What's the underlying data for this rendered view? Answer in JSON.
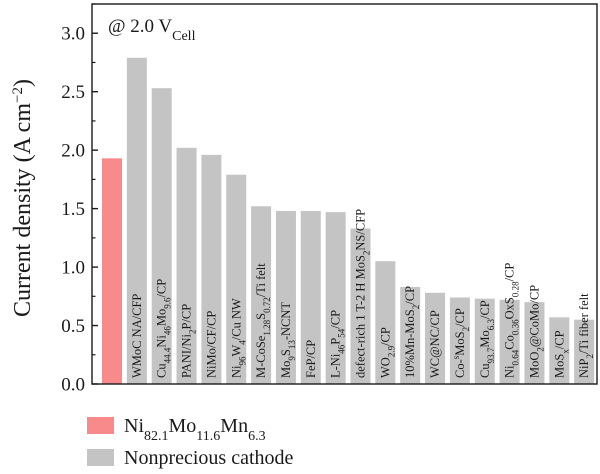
{
  "chart_data": {
    "type": "bar",
    "ylabel": "Current density (A cm",
    "ylabel_sup": "−2",
    "ylabel_close": ")",
    "ylim": [
      0,
      3.25
    ],
    "yticks": [
      "0.0",
      "0.5",
      "1.0",
      "1.5",
      "2.0",
      "2.5",
      "3.0"
    ],
    "grid": false,
    "annotation": {
      "text": "@ 2.0 V",
      "sub": "Cell"
    },
    "legend_position": "bottom-left",
    "colors": {
      "highlight": "#f98a8c",
      "nonprecious": "#c4c4c4",
      "axis": "#1a1a1a"
    },
    "legend": [
      {
        "series": "highlight",
        "parts": [
          [
            "Ni",
            ""
          ],
          [
            "82.1",
            "sub"
          ],
          [
            "Mo",
            ""
          ],
          [
            "11.6",
            "sub"
          ],
          [
            "Mn",
            ""
          ],
          [
            "6.3",
            "sub"
          ]
        ]
      },
      {
        "series": "nonprecious",
        "parts": [
          [
            "Nonprecious cathode",
            ""
          ]
        ]
      }
    ],
    "bars": [
      {
        "value": 1.93,
        "series": "highlight",
        "label": []
      },
      {
        "value": 2.79,
        "series": "nonprecious",
        "label": [
          [
            "WMoC NA/CFP",
            ""
          ]
        ]
      },
      {
        "value": 2.53,
        "series": "nonprecious",
        "label": [
          [
            "Cu",
            ""
          ],
          [
            "44.4",
            "sub"
          ],
          [
            "Ni",
            ""
          ],
          [
            "46",
            "sub"
          ],
          [
            "Mo",
            ""
          ],
          [
            "9.6",
            "sub"
          ],
          [
            "/CP",
            ""
          ]
        ]
      },
      {
        "value": 2.02,
        "series": "nonprecious",
        "label": [
          [
            "PANI/Ni",
            ""
          ],
          [
            "2",
            "sub"
          ],
          [
            "P/CP",
            ""
          ]
        ]
      },
      {
        "value": 1.96,
        "series": "nonprecious",
        "label": [
          [
            "NiMo/CF/CP",
            ""
          ]
        ]
      },
      {
        "value": 1.79,
        "series": "nonprecious",
        "label": [
          [
            "Ni",
            ""
          ],
          [
            "96",
            "sub"
          ],
          [
            "W",
            ""
          ],
          [
            "4",
            "sub"
          ],
          [
            "/Cu NW",
            ""
          ]
        ]
      },
      {
        "value": 1.52,
        "series": "nonprecious",
        "label": [
          [
            "M-CoSe",
            ""
          ],
          [
            "1.28",
            "sub"
          ],
          [
            "S",
            ""
          ],
          [
            "0.72",
            "sub"
          ],
          [
            "/Ti felt",
            ""
          ]
        ]
      },
      {
        "value": 1.48,
        "series": "nonprecious",
        "label": [
          [
            "Mo",
            ""
          ],
          [
            "9",
            "sub"
          ],
          [
            "S",
            ""
          ],
          [
            "13",
            "sub"
          ],
          [
            "-NCNT",
            ""
          ]
        ]
      },
      {
        "value": 1.48,
        "series": "nonprecious",
        "label": [
          [
            "FeP/CP",
            ""
          ]
        ]
      },
      {
        "value": 1.47,
        "series": "nonprecious",
        "label": [
          [
            "L-Ni",
            ""
          ],
          [
            "46",
            "sub"
          ],
          [
            "P",
            ""
          ],
          [
            "54",
            "sub"
          ],
          [
            "/CP",
            ""
          ]
        ]
      },
      {
        "value": 1.33,
        "series": "nonprecious",
        "label": [
          [
            "defect-rich 1 T-2 H MoS",
            ""
          ],
          [
            "2",
            "sub"
          ],
          [
            "NS/CFP",
            ""
          ]
        ]
      },
      {
        "value": 1.05,
        "series": "nonprecious",
        "label": [
          [
            "WO",
            ""
          ],
          [
            "2.9",
            "sub"
          ],
          [
            "/CP",
            ""
          ]
        ]
      },
      {
        "value": 0.83,
        "series": "nonprecious",
        "label": [
          [
            "10%Mn-MoS",
            ""
          ],
          [
            "2",
            "sub"
          ],
          [
            "/CP",
            ""
          ]
        ]
      },
      {
        "value": 0.78,
        "series": "nonprecious",
        "label": [
          [
            "WC@NC/CP",
            ""
          ]
        ]
      },
      {
        "value": 0.74,
        "series": "nonprecious",
        "label": [
          [
            "Co-",
            ""
          ],
          [
            "s",
            "sup"
          ],
          [
            "MoS",
            ""
          ],
          [
            "2",
            "sub"
          ],
          [
            "/CP",
            ""
          ]
        ]
      },
      {
        "value": 0.73,
        "series": "nonprecious",
        "label": [
          [
            "Cu",
            ""
          ],
          [
            "93.7",
            "sub"
          ],
          [
            "Mo",
            ""
          ],
          [
            "6.3",
            "sub"
          ],
          [
            "/CP",
            ""
          ]
        ]
      },
      {
        "value": 0.72,
        "series": "nonprecious",
        "label": [
          [
            "Ni",
            ""
          ],
          [
            "0.64",
            "sub"
          ],
          [
            "Co",
            ""
          ],
          [
            "0.36",
            "sub"
          ],
          [
            "OxS",
            ""
          ],
          [
            "0.28",
            "sub"
          ],
          [
            "/CP",
            ""
          ]
        ]
      },
      {
        "value": 0.7,
        "series": "nonprecious",
        "label": [
          [
            "MoO",
            ""
          ],
          [
            "2",
            "sub"
          ],
          [
            "@CoMo/CP",
            ""
          ]
        ]
      },
      {
        "value": 0.57,
        "series": "nonprecious",
        "label": [
          [
            "MoS",
            ""
          ],
          [
            "x",
            "sub"
          ],
          [
            "/CP",
            ""
          ]
        ]
      },
      {
        "value": 0.55,
        "series": "nonprecious",
        "label": [
          [
            "NiP",
            ""
          ],
          [
            "2",
            "sub"
          ],
          [
            "/Ti fiber felt",
            ""
          ]
        ]
      }
    ]
  }
}
